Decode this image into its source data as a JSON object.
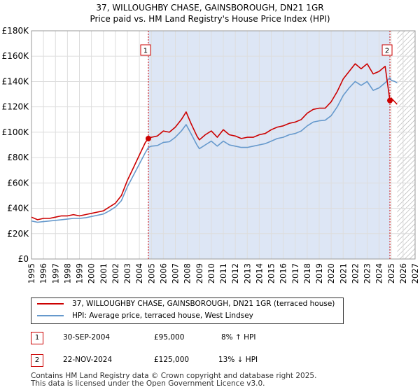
{
  "title": {
    "line1": "37, WILLOUGHBY CHASE, GAINSBOROUGH, DN21 1GR",
    "line2": "Price paid vs. HM Land Registry's House Price Index (HPI)"
  },
  "legend": {
    "property_label": "37, WILLOUGHBY CHASE, GAINSBOROUGH, DN21 1GR (terraced house)",
    "hpi_label": "HPI: Average price, terraced house, West Lindsey"
  },
  "colors": {
    "property": "#cc0000",
    "hpi": "#6699cc",
    "shade": "#dde6f5",
    "hatch": "#aaaaaa",
    "grid": "#dddddd",
    "marker_line": "#cc0000"
  },
  "transactions": [
    {
      "num": "1",
      "date": "30-SEP-2004",
      "price": "£95,000",
      "hpi_change": "8% ↑ HPI"
    },
    {
      "num": "2",
      "date": "22-NOV-2024",
      "price": "£125,000",
      "hpi_change": "13% ↓ HPI"
    }
  ],
  "footer": {
    "line1": "Contains HM Land Registry data © Crown copyright and database right 2025.",
    "line2": "This data is licensed under the Open Government Licence v3.0."
  },
  "chart_data": {
    "type": "line",
    "title": "37, WILLOUGHBY CHASE, GAINSBOROUGH, DN21 1GR",
    "subtitle": "Price paid vs. HM Land Registry's House Price Index (HPI)",
    "xlabel": "",
    "ylabel": "",
    "xlim": [
      1995,
      2027
    ],
    "ylim": [
      0,
      180000
    ],
    "x_ticks": [
      "1995",
      "1996",
      "1997",
      "1998",
      "1999",
      "2000",
      "2001",
      "2002",
      "2003",
      "2004",
      "2005",
      "2006",
      "2007",
      "2008",
      "2009",
      "2010",
      "2011",
      "2012",
      "2013",
      "2014",
      "2015",
      "2016",
      "2017",
      "2018",
      "2019",
      "2020",
      "2021",
      "2022",
      "2023",
      "2024",
      "2025",
      "2026",
      "2027"
    ],
    "y_ticks": [
      {
        "value": 0,
        "label": "£0"
      },
      {
        "value": 20000,
        "label": "£20K"
      },
      {
        "value": 40000,
        "label": "£40K"
      },
      {
        "value": 60000,
        "label": "£60K"
      },
      {
        "value": 80000,
        "label": "£80K"
      },
      {
        "value": 100000,
        "label": "£100K"
      },
      {
        "value": 120000,
        "label": "£120K"
      },
      {
        "value": 140000,
        "label": "£140K"
      },
      {
        "value": 160000,
        "label": "£160K"
      },
      {
        "value": 180000,
        "label": "£180K"
      }
    ],
    "shaded_region": {
      "from": 2004.75,
      "to": 2024.9
    },
    "hatched_region": {
      "from": 2025.5,
      "to": 2027
    },
    "grid": true,
    "legend_position": "bottom",
    "series": [
      {
        "name": "37, WILLOUGHBY CHASE, GAINSBOROUGH, DN21 1GR (terraced house)",
        "x": [
          1995,
          1995.5,
          1996,
          1996.5,
          1997,
          1997.5,
          1998,
          1998.5,
          1999,
          1999.5,
          2000,
          2000.5,
          2001,
          2001.5,
          2002,
          2002.5,
          2003,
          2003.5,
          2004,
          2004.5,
          2004.75,
          2005,
          2005.5,
          2006,
          2006.5,
          2007,
          2007.5,
          2007.9,
          2008.3,
          2008.8,
          2009,
          2009.5,
          2010,
          2010.5,
          2011,
          2011.5,
          2012,
          2012.5,
          2013,
          2013.5,
          2014,
          2014.5,
          2015,
          2015.5,
          2016,
          2016.5,
          2017,
          2017.5,
          2018,
          2018.5,
          2019,
          2019.5,
          2020,
          2020.5,
          2021,
          2021.5,
          2022,
          2022.5,
          2023,
          2023.5,
          2024,
          2024.5,
          2024.9,
          2025,
          2025.3,
          2025.5
        ],
        "values": [
          33000,
          31000,
          32000,
          32000,
          33000,
          34000,
          34000,
          35000,
          34000,
          35000,
          36000,
          37000,
          38000,
          41000,
          44000,
          50000,
          62000,
          72000,
          82000,
          92000,
          95000,
          96000,
          97000,
          101000,
          100000,
          104000,
          110000,
          116000,
          107000,
          97000,
          94000,
          98000,
          101000,
          96000,
          102000,
          98000,
          97000,
          95000,
          96000,
          96000,
          98000,
          99000,
          102000,
          104000,
          105000,
          107000,
          108000,
          110000,
          115000,
          118000,
          119000,
          119000,
          124000,
          132000,
          142000,
          148000,
          154000,
          150000,
          154000,
          146000,
          148000,
          152000,
          125000,
          127000,
          124000,
          122000
        ]
      },
      {
        "name": "HPI: Average price, terraced house, West Lindsey",
        "x": [
          1995,
          1995.5,
          1996,
          1996.5,
          1997,
          1997.5,
          1998,
          1998.5,
          1999,
          1999.5,
          2000,
          2000.5,
          2001,
          2001.5,
          2002,
          2002.5,
          2003,
          2003.5,
          2004,
          2004.5,
          2004.75,
          2005,
          2005.5,
          2006,
          2006.5,
          2007,
          2007.5,
          2007.9,
          2008.3,
          2008.8,
          2009,
          2009.5,
          2010,
          2010.5,
          2011,
          2011.5,
          2012,
          2012.5,
          2013,
          2013.5,
          2014,
          2014.5,
          2015,
          2015.5,
          2016,
          2016.5,
          2017,
          2017.5,
          2018,
          2018.5,
          2019,
          2019.5,
          2020,
          2020.5,
          2021,
          2021.5,
          2022,
          2022.5,
          2023,
          2023.5,
          2024,
          2024.5,
          2024.9,
          2025,
          2025.3,
          2025.5
        ],
        "values": [
          30000,
          29000,
          29500,
          30000,
          30500,
          31000,
          31500,
          32000,
          32000,
          32500,
          33500,
          34500,
          35500,
          38000,
          41000,
          46000,
          57000,
          66000,
          75000,
          84000,
          88000,
          89000,
          89500,
          92000,
          92500,
          96000,
          101000,
          106000,
          99000,
          90000,
          87000,
          90000,
          93000,
          89000,
          93000,
          90000,
          89000,
          88000,
          88000,
          89000,
          90000,
          91000,
          93000,
          95000,
          96000,
          98000,
          99000,
          101000,
          105000,
          108000,
          109000,
          109500,
          113000,
          120000,
          129000,
          135000,
          140000,
          137000,
          140000,
          133000,
          135000,
          139000,
          143000,
          141000,
          140000,
          139000
        ]
      }
    ],
    "annotations": [
      {
        "label": "1",
        "x": 2004.75,
        "y": 95000
      },
      {
        "label": "2",
        "x": 2024.9,
        "y": 125000
      }
    ]
  }
}
